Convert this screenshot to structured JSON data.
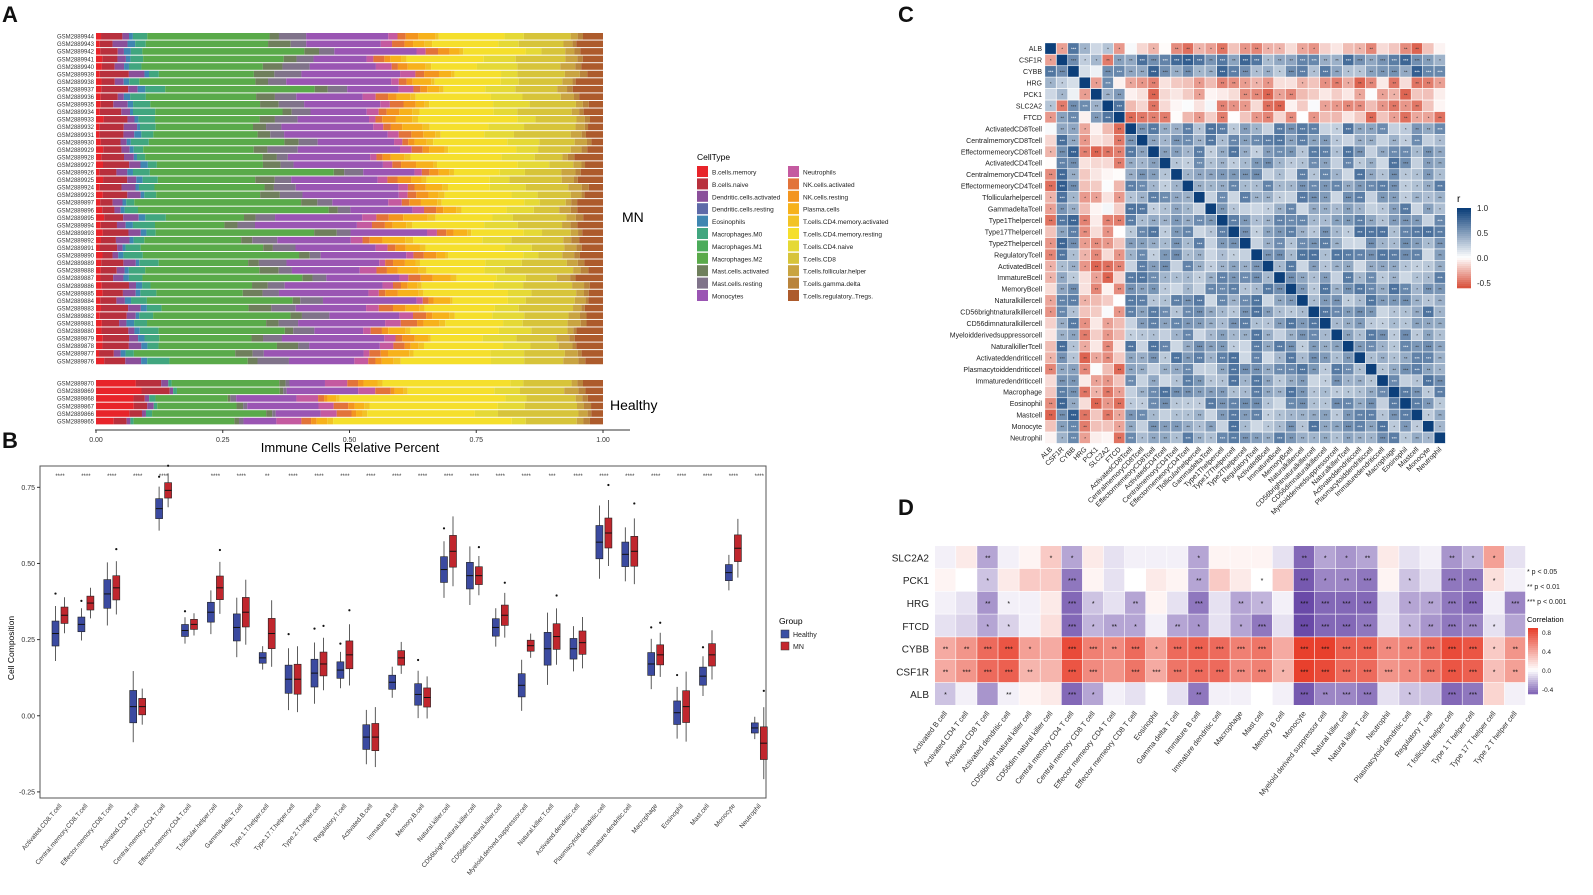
{
  "panels": {
    "a": "A",
    "b": "B",
    "c": "C",
    "d": "D"
  },
  "panel_a": {
    "xlabel": "Immune Cells Relative Percent",
    "xticks": [
      "0.00",
      "0.25",
      "0.50",
      "0.75",
      "1.00"
    ],
    "group_labels": [
      "MN",
      "Healthy"
    ],
    "legend_title": "CellType",
    "legend": [
      {
        "label": "B.cells.memory",
        "color": "#e8242a"
      },
      {
        "label": "B.cells.naive",
        "color": "#b8303d"
      },
      {
        "label": "Dendritic.cells.activated",
        "color": "#8a4f9a"
      },
      {
        "label": "Dendritic.cells.resting",
        "color": "#5e6aa8"
      },
      {
        "label": "Eosinophils",
        "color": "#3f86b1"
      },
      {
        "label": "Macrophages.M0",
        "color": "#41a67f"
      },
      {
        "label": "Macrophages.M1",
        "color": "#4bab5a"
      },
      {
        "label": "Macrophages.M2",
        "color": "#5aaa4a"
      },
      {
        "label": "Mast.cells.activated",
        "color": "#6f7f5c"
      },
      {
        "label": "Mast.cells.resting",
        "color": "#80738a"
      },
      {
        "label": "Monocytes",
        "color": "#9a55b3"
      },
      {
        "label": "Neutrophils",
        "color": "#c45aa0"
      },
      {
        "label": "NK.cells.activated",
        "color": "#e2733a"
      },
      {
        "label": "NK.cells.resting",
        "color": "#f3951f"
      },
      {
        "label": "Plasma.cells",
        "color": "#f7b21b"
      },
      {
        "label": "T.cells.CD4.memory.activated",
        "color": "#f2c325"
      },
      {
        "label": "T.cells.CD4.memory.resting",
        "color": "#f5df2c"
      },
      {
        "label": "T.cells.CD4.naive",
        "color": "#e5d936"
      },
      {
        "label": "T.cells.CD8",
        "color": "#d7c43a"
      },
      {
        "label": "T.cells.follicular.helper",
        "color": "#c9a441"
      },
      {
        "label": "T.cells.gamma.delta",
        "color": "#b9843c"
      },
      {
        "label": "T.cells.regulatory..Tregs.",
        "color": "#ad5b2c"
      }
    ],
    "samples_mn": [
      "GSM2889944",
      "GSM2889943",
      "GSM2889942",
      "GSM2889941",
      "GSM2889940",
      "GSM2889939",
      "GSM2889938",
      "GSM2889937",
      "GSM2889936",
      "GSM2889935",
      "GSM2889934",
      "GSM2889933",
      "GSM2889932",
      "GSM2889931",
      "GSM2889930",
      "GSM2889929",
      "GSM2889928",
      "GSM2889927",
      "GSM2889926",
      "GSM2889925",
      "GSM2889924",
      "GSM2889923",
      "GSM2889897",
      "GSM2889896",
      "GSM2889895",
      "GSM2889894",
      "GSM2889893",
      "GSM2889892",
      "GSM2889891",
      "GSM2889890",
      "GSM2889889",
      "GSM2889888",
      "GSM2889887",
      "GSM2889886",
      "GSM2889885",
      "GSM2889884",
      "GSM2889883",
      "GSM2889882",
      "GSM2889881",
      "GSM2889880",
      "GSM2889879",
      "GSM2889878",
      "GSM2889877",
      "GSM2889876"
    ],
    "samples_healthy": [
      "GSM2889870",
      "GSM2889869",
      "GSM2889868",
      "GSM2889867",
      "GSM2889866",
      "GSM2889865"
    ]
  },
  "panel_b": {
    "ylabel": "Cell Composition",
    "yticks": [
      "0.75",
      "0.50",
      "0.25",
      "0.00",
      "-0.25"
    ],
    "legend_title": "Group",
    "groups": [
      {
        "label": "Healthy",
        "color": "#3a4fa3"
      },
      {
        "label": "MN",
        "color": "#c4272e"
      }
    ]
  },
  "panel_c": {
    "legend_title": "r",
    "legend_ticks": [
      "1.0",
      "0.5",
      "0.0",
      "-0.5"
    ],
    "genes": [
      "ALB",
      "CSF1R",
      "CYBB",
      "HRG",
      "PCK1",
      "SLC2A2",
      "FTCD"
    ],
    "cells": [
      "ActivatedCD8Tcell",
      "CentralmemoryCD8Tcell",
      "EffectormemeoryCD8Tcell",
      "ActivatedCD4Tcell",
      "CentralmemoryCD4Tcell",
      "EffectormemeoryCD4Tcell",
      "Tfollicularhelpercell",
      "GammadeltaTcell",
      "Type1Thelpercell",
      "Type17Thelpercell",
      "Type2Thelpercell",
      "RegulatoryTcell",
      "ActivatedBcell",
      "ImmatureBcell",
      "MemoryBcell",
      "Naturalkillercell",
      "CD56brightnaturalkillercell",
      "CD56dimnaturalkillercell",
      "Myeloidderivedsuppressorcell",
      "NaturalkillerTcell",
      "Activateddendriticcell",
      "Plasmacytoiddendriticcell",
      "Immaturedendriticcell",
      "Macrophage",
      "Eosinophil",
      "Mastcell",
      "Monocyte",
      "Neutrophil"
    ]
  },
  "panel_d": {
    "legend_sig": [
      "* p < 0.05",
      "** p < 0.01",
      "*** p < 0.001"
    ],
    "legend_title": "Correlation",
    "legend_ticks": [
      "0.8",
      "0.4",
      "0.0",
      "-0.4"
    ],
    "rows": [
      "SLC2A2",
      "PCK1",
      "HRG",
      "FTCD",
      "CYBB",
      "CSF1R",
      "ALB"
    ],
    "cols": [
      "Activated B cell",
      "Activated CD4 T cell",
      "Activated CD8 T cell",
      "Activated dendritic cell",
      "CD56bright natural killer cell",
      "CD56dim natural killer cell",
      "Central memory CD4 T cell",
      "Central memory CD8 T cell",
      "Effector memeory CD4 T cell",
      "Effector memeory CD8 T cell",
      "Eosinophil",
      "Gamma delta T cell",
      "Immature  B cell",
      "Immature dendritic cell",
      "Macrophage",
      "Mast cell",
      "Memory B cell",
      "Monocyte",
      "Myeloid derived suppressor cell",
      "Natural killer cell",
      "Natural killer T cell",
      "Neutrophil",
      "Plasmacytoid dendritic cell",
      "Regulatory T cell",
      "T follicular helper cell",
      "Type 1 T helper cell",
      "Type 17 T helper cell",
      "Type 2 T helper cell"
    ]
  },
  "chart_data": [
    {
      "type": "bar",
      "title": "A",
      "orientation": "horizontal-stacked",
      "xlabel": "Immune Cells Relative Percent",
      "xlim": [
        0,
        1
      ],
      "groups": [
        "MN",
        "Healthy"
      ],
      "series": [
        {
          "name": "B.cells.memory",
          "mn_mean": 0.01,
          "healthy_mean": 0.06
        },
        {
          "name": "B.cells.naive",
          "mn_mean": 0.04,
          "healthy_mean": 0.04
        },
        {
          "name": "Dendritic.cells.activated",
          "mn_mean": 0.02,
          "healthy_mean": 0.01
        },
        {
          "name": "Eosinophils",
          "mn_mean": 0.01,
          "healthy_mean": 0.0
        },
        {
          "name": "Macrophages.M0",
          "mn_mean": 0.03,
          "healthy_mean": 0.01
        },
        {
          "name": "Macrophages.M2",
          "mn_mean": 0.24,
          "healthy_mean": 0.17
        },
        {
          "name": "Mast.cells.activated",
          "mn_mean": 0.03,
          "healthy_mean": 0.01
        },
        {
          "name": "Mast.cells.resting",
          "mn_mean": 0.04,
          "healthy_mean": 0.01
        },
        {
          "name": "Monocytes",
          "mn_mean": 0.15,
          "healthy_mean": 0.1
        },
        {
          "name": "Neutrophils",
          "mn_mean": 0.02,
          "healthy_mean": 0.04
        },
        {
          "name": "NK.cells.activated",
          "mn_mean": 0.02,
          "healthy_mean": 0.02
        },
        {
          "name": "NK.cells.resting",
          "mn_mean": 0.02,
          "healthy_mean": 0.01
        },
        {
          "name": "Plasma.cells",
          "mn_mean": 0.03,
          "healthy_mean": 0.02
        },
        {
          "name": "T.cells.CD4.memory.activated",
          "mn_mean": 0.01,
          "healthy_mean": 0.01
        },
        {
          "name": "T.cells.CD4.memory.resting",
          "mn_mean": 0.13,
          "healthy_mean": 0.28
        },
        {
          "name": "T.cells.CD4.naive",
          "mn_mean": 0.05,
          "healthy_mean": 0.04
        },
        {
          "name": "T.cells.CD8",
          "mn_mean": 0.08,
          "healthy_mean": 0.1
        },
        {
          "name": "T.cells.follicular.helper",
          "mn_mean": 0.02,
          "healthy_mean": 0.02
        },
        {
          "name": "T.cells.gamma.delta",
          "mn_mean": 0.01,
          "healthy_mean": 0.01
        },
        {
          "name": "T.cells.regulatory..Tregs.",
          "mn_mean": 0.04,
          "healthy_mean": 0.03
        }
      ]
    },
    {
      "type": "box",
      "title": "B",
      "ylabel": "Cell Composition",
      "ylim": [
        -0.25,
        0.8
      ],
      "categories": [
        "Activated.CD8.T.cell",
        "Central.memory.CD8.T.cell",
        "Effector.memory.CD8.T.cell",
        "Activated.CD4.T.cell",
        "Central.memory.CD4.T.cell",
        "Effector.memory.CD4.T.cell",
        "T.follicular.helper.cell",
        "Gamma.delta.T.cell",
        "Type.1.T.helper.cell",
        "Type.17.T.helper.cell",
        "Type.2.T.helper.cell",
        "Regulatory.T.cell",
        "Activated.B.cell",
        "Immature.B.cell",
        "Memory.B.cell",
        "Natural.killer.cell",
        "CD56bright.natural.killer.cell",
        "CD56dim.natural.killer.cell",
        "Myeloid.derived.suppressor.cell",
        "Natural.killer.T.cell",
        "Activated.dendritic.cell",
        "Plasmacytoid.dendritic.cell",
        "Immature.dendritic.cell",
        "Macrophage",
        "Eosinophil",
        "Mast.cell",
        "Monocyte",
        "Neutrophil"
      ],
      "significance": [
        "****",
        "****",
        "****",
        "****",
        "****",
        "",
        "****",
        "****",
        "**",
        "****",
        "****",
        "****",
        "****",
        "****",
        "****",
        "****",
        "****",
        "****",
        "****",
        "***",
        "****",
        "****",
        "****",
        "****",
        "****",
        "****",
        "****",
        "****"
      ],
      "series": [
        {
          "name": "Healthy",
          "medians": [
            0.27,
            0.3,
            0.4,
            0.03,
            0.68,
            0.28,
            0.34,
            0.29,
            0.19,
            0.12,
            0.14,
            0.15,
            -0.07,
            0.11,
            0.07,
            0.48,
            0.46,
            0.29,
            0.1,
            0.22,
            0.22,
            0.57,
            0.53,
            0.17,
            0.01,
            0.13,
            0.47,
            -0.04
          ]
        },
        {
          "name": "MN",
          "medians": [
            0.33,
            0.37,
            0.42,
            0.03,
            0.74,
            0.3,
            0.42,
            0.34,
            0.27,
            0.12,
            0.17,
            0.2,
            -0.07,
            0.19,
            0.06,
            0.54,
            0.46,
            0.33,
            0.23,
            0.26,
            0.24,
            0.6,
            0.54,
            0.2,
            0.03,
            0.2,
            0.55,
            -0.09
          ]
        }
      ]
    },
    {
      "type": "heatmap",
      "title": "C",
      "description": "Correlation matrix (r) among 7 genes and 28 immune cell types",
      "colorscale": {
        "min": -0.5,
        "max": 1.0,
        "low": "red",
        "mid": "white",
        "high": "blue"
      }
    },
    {
      "type": "heatmap",
      "title": "D",
      "rows": [
        "SLC2A2",
        "PCK1",
        "HRG",
        "FTCD",
        "CYBB",
        "CSF1R",
        "ALB"
      ],
      "values": [
        [
          -0.05,
          0.1,
          -0.3,
          -0.05,
          0.05,
          0.25,
          -0.3,
          0.1,
          -0.1,
          -0.05,
          -0.05,
          -0.05,
          -0.3,
          0.05,
          0.05,
          0.05,
          -0.1,
          -0.5,
          -0.3,
          -0.35,
          -0.3,
          0.1,
          -0.1,
          -0.05,
          -0.35,
          -0.25,
          0.45,
          -0.1
        ],
        [
          0.05,
          0.0,
          -0.2,
          0.1,
          0.25,
          0.25,
          -0.45,
          0.05,
          -0.1,
          0.0,
          0.1,
          0.05,
          -0.3,
          0.25,
          0.1,
          0.0,
          0.25,
          -0.55,
          -0.4,
          -0.4,
          -0.45,
          0.05,
          -0.2,
          -0.1,
          -0.45,
          -0.45,
          0.15,
          -0.05
        ],
        [
          -0.05,
          -0.1,
          -0.35,
          -0.05,
          -0.05,
          0.1,
          -0.5,
          -0.2,
          -0.1,
          -0.3,
          0.05,
          -0.1,
          -0.45,
          -0.1,
          -0.3,
          -0.25,
          -0.05,
          -0.6,
          -0.5,
          -0.5,
          -0.5,
          -0.1,
          -0.3,
          -0.3,
          -0.45,
          -0.5,
          -0.05,
          -0.4
        ],
        [
          -0.1,
          -0.15,
          -0.3,
          -0.15,
          -0.05,
          0.15,
          -0.5,
          -0.25,
          -0.3,
          -0.3,
          -0.05,
          -0.3,
          -0.35,
          -0.1,
          -0.3,
          -0.45,
          -0.1,
          -0.6,
          -0.5,
          -0.5,
          -0.45,
          -0.1,
          -0.25,
          -0.35,
          -0.45,
          -0.4,
          -0.1,
          -0.3
        ],
        [
          0.4,
          0.5,
          0.7,
          0.8,
          0.45,
          0.4,
          0.85,
          0.6,
          0.55,
          0.7,
          0.45,
          0.7,
          0.75,
          0.7,
          0.6,
          0.65,
          0.4,
          0.95,
          0.9,
          0.75,
          0.75,
          0.55,
          0.6,
          0.7,
          0.85,
          0.8,
          0.25,
          0.5
        ],
        [
          0.4,
          0.5,
          0.7,
          0.75,
          0.35,
          0.35,
          0.8,
          0.55,
          0.5,
          0.65,
          0.4,
          0.65,
          0.7,
          0.7,
          0.55,
          0.6,
          0.35,
          0.9,
          0.85,
          0.7,
          0.7,
          0.5,
          0.55,
          0.65,
          0.8,
          0.75,
          0.3,
          0.45
        ],
        [
          -0.2,
          -0.05,
          -0.35,
          -0.05,
          0.05,
          0.1,
          -0.5,
          -0.3,
          -0.05,
          -0.1,
          0.0,
          -0.1,
          -0.45,
          -0.05,
          -0.05,
          0.0,
          -0.05,
          -0.55,
          -0.4,
          -0.4,
          -0.45,
          -0.1,
          -0.2,
          -0.2,
          -0.5,
          -0.45,
          0.2,
          -0.05
        ]
      ],
      "significance": [
        [
          "",
          "",
          "**",
          "",
          "",
          "*",
          "*",
          "",
          "",
          "",
          "",
          "",
          "*",
          "",
          "",
          "",
          "",
          "**",
          "*",
          "*",
          "**",
          "",
          "",
          "",
          "**",
          "*",
          "*",
          ""
        ],
        [
          "",
          "",
          "*",
          "",
          "",
          "",
          "***",
          "",
          "",
          "",
          "",
          "",
          "**",
          "",
          "",
          "*",
          "",
          "***",
          "*",
          "**",
          "***",
          "",
          "*",
          "",
          "***",
          "***",
          "*",
          ""
        ],
        [
          "",
          "",
          "**",
          "*",
          "",
          "",
          "***",
          "*",
          "",
          "**",
          "",
          "",
          "***",
          "",
          "**",
          "*",
          "",
          "***",
          "***",
          "***",
          "***",
          "",
          "*",
          "**",
          "***",
          "***",
          "",
          "***"
        ],
        [
          "",
          "",
          "*",
          "*",
          "",
          "",
          "***",
          "*",
          "**",
          "*",
          "",
          "**",
          "*",
          "",
          "*",
          "***",
          "",
          "***",
          "***",
          "***",
          "***",
          "",
          "*",
          "**",
          "***",
          "***",
          "*",
          ""
        ],
        [
          "**",
          "**",
          "***",
          "***",
          "*",
          "",
          "***",
          "***",
          "**",
          "***",
          "*",
          "***",
          "***",
          "***",
          "***",
          "***",
          "",
          "***",
          "***",
          "***",
          "***",
          "**",
          "**",
          "***",
          "***",
          "***",
          "*",
          "**"
        ],
        [
          "**",
          "***",
          "***",
          "***",
          "**",
          "",
          "***",
          "***",
          "",
          "***",
          "***",
          "***",
          "***",
          "***",
          "***",
          "***",
          "*",
          "***",
          "***",
          "***",
          "***",
          "***",
          "*",
          "***",
          "***",
          "***",
          "*",
          "**"
        ],
        [
          "*",
          "",
          "",
          "**",
          "",
          "",
          "***",
          "*",
          "",
          "",
          "",
          "",
          "**",
          "",
          "",
          "",
          "",
          "***",
          "**",
          "***",
          "***",
          "",
          "*",
          "",
          "***",
          "***",
          "",
          ""
        ]
      ],
      "colorscale": {
        "min": -0.5,
        "max": 0.9,
        "low": "purple",
        "mid": "white",
        "high": "red"
      }
    }
  ]
}
